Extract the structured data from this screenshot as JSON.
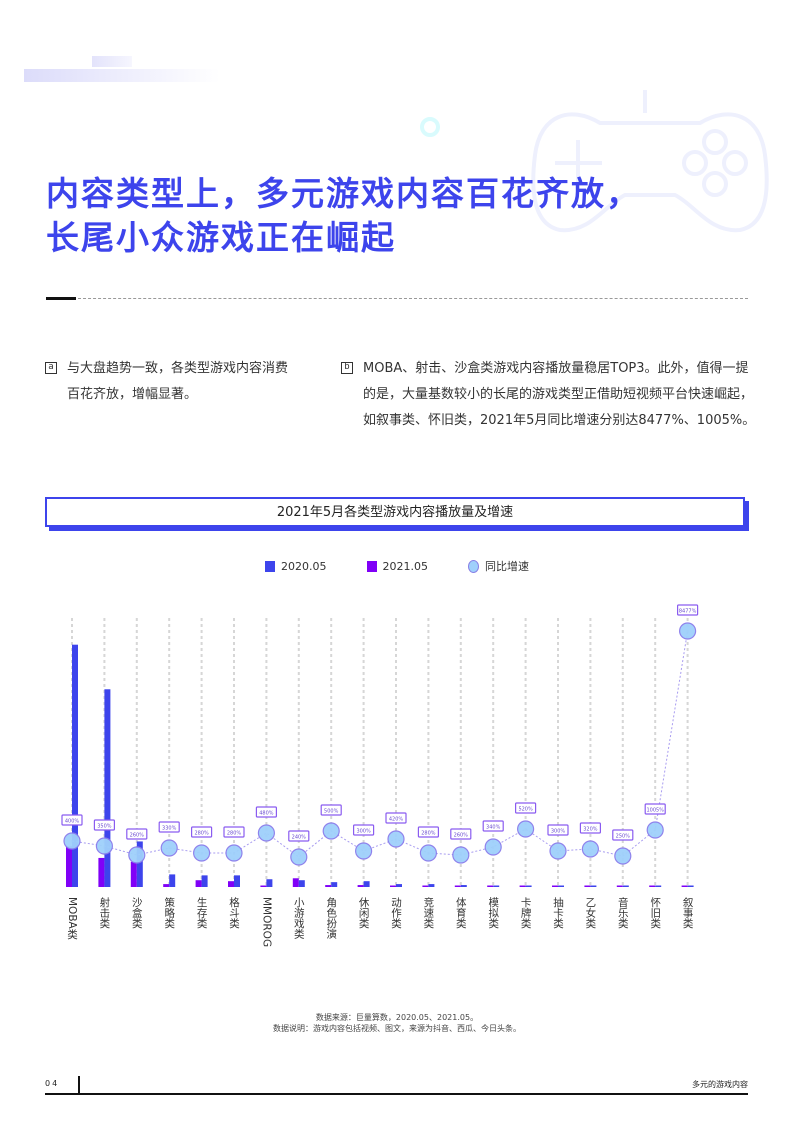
{
  "header": {
    "title_line1": "内容类型上，多元游戏内容百花齐放，",
    "title_line2": "长尾小众游戏正在崛起"
  },
  "paragraphs": [
    {
      "marker": "a",
      "text": "与大盘趋势一致，各类型游戏内容消费百花齐放，增幅显著。"
    },
    {
      "marker": "b",
      "text": "MOBA、射击、沙盒类游戏内容播放量稳居TOP3。此外，值得一提的是，大量基数较小的长尾的游戏类型正借助短视频平台快速崛起，如叙事类、怀旧类，2021年5月同比增速分别达8477%、1005%。"
    }
  ],
  "chart_box": {
    "title": "2021年5月各类型游戏内容播放量及增速"
  },
  "legend": [
    {
      "label": "2020.05",
      "color": "#3d44ec",
      "shape": "square"
    },
    {
      "label": "2021.05",
      "color": "#8000f7",
      "shape": "square"
    },
    {
      "label": "同比增速",
      "color": "#9fd0fb",
      "shape": "circle"
    }
  ],
  "chart_data": {
    "type": "bar",
    "title": "2021年5月各类型游戏内容播放量及增速",
    "xlabel": "",
    "ylabel": "",
    "grid": "vertical dashed",
    "legend_position": "top",
    "categories": [
      "MOBA类",
      "射击类",
      "沙盒类",
      "策略类",
      "生存类",
      "格斗类",
      "MMOROG",
      "小游戏类",
      "角色扮演",
      "休闲类",
      "动作类",
      "竞速类",
      "体育类",
      "模拟类",
      "卡牌类",
      "抽卡类",
      "乙女类",
      "音乐类",
      "怀旧类",
      "叙事类"
    ],
    "series": [
      {
        "name": "2020.05",
        "type": "bar",
        "color": "#3d44ec",
        "values": [
          250,
          204,
          47,
          13,
          12,
          12,
          8,
          7,
          5,
          6,
          3,
          3,
          2,
          1,
          1,
          1,
          1,
          1,
          0.5,
          0.5
        ]
      },
      {
        "name": "2021.05",
        "type": "bar",
        "color": "#8000f7",
        "values": [
          42,
          30,
          26,
          3,
          7,
          6,
          1,
          9,
          2,
          2,
          1,
          1,
          0.5,
          0.5,
          0.5,
          0.5,
          0.5,
          0.5,
          0.3,
          0.2
        ]
      },
      {
        "name": "同比增速",
        "type": "line-bubble",
        "color": "#9fd0fb",
        "values": [
          400,
          350,
          260,
          330,
          280,
          280,
          480,
          240,
          500,
          300,
          420,
          280,
          260,
          340,
          520,
          300,
          320,
          250,
          1005,
          8477
        ]
      }
    ],
    "value_labels_legible": false,
    "notes": "Bar heights and growth values estimated from pixel positions; data labels on bubbles are illegible in source."
  },
  "notes": {
    "source": "数据来源：巨量算数，2020.05、2021.05。",
    "explain": "数据说明：游戏内容包括视频、图文，来源为抖音、西瓜、今日头条。"
  },
  "footer": {
    "page": "04",
    "section": "多元的游戏内容"
  }
}
